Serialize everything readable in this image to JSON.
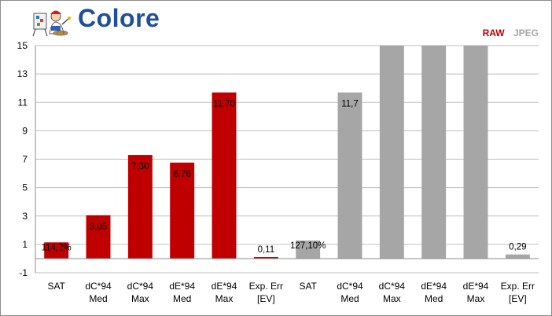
{
  "header": {
    "title": "Colore",
    "logo_icon": "painter-mascot-icon"
  },
  "legend": {
    "raw_label": "RAW",
    "jpeg_label": "JPEG"
  },
  "colors": {
    "raw": "#c00000",
    "jpeg": "#a6a6a6",
    "title": "#1f4e9b"
  },
  "chart_data": {
    "type": "bar",
    "title": "Colore",
    "xlabel": "",
    "ylabel": "",
    "ylim": [
      -1,
      15
    ],
    "yticks": [
      "-1",
      "1",
      "3",
      "5",
      "7",
      "9",
      "11",
      "13",
      "15"
    ],
    "grid": true,
    "legend_position": "top-right",
    "categories": [
      [
        "SAT"
      ],
      [
        "dC*94",
        "Med"
      ],
      [
        "dC*94",
        "Max"
      ],
      [
        "dE*94",
        "Med"
      ],
      [
        "dE*94",
        "Max"
      ],
      [
        "Exp. Err",
        "[EV]"
      ],
      [
        "SAT"
      ],
      [
        "dC*94",
        "Med"
      ],
      [
        "dC*94",
        "Max"
      ],
      [
        "dE*94",
        "Med"
      ],
      [
        "dE*94",
        "Max"
      ],
      [
        "Exp. Err",
        "[EV]"
      ]
    ],
    "series": [
      {
        "name": "RAW",
        "color": "#c00000",
        "indices": [
          0,
          1,
          2,
          3,
          4,
          5
        ]
      },
      {
        "name": "JPEG",
        "color": "#a6a6a6",
        "indices": [
          6,
          7,
          8,
          9,
          10,
          11
        ]
      }
    ],
    "values": [
      1.142,
      3.05,
      7.3,
      6.76,
      11.7,
      0.11,
      1.271,
      11.7,
      15,
      15,
      15,
      0.29
    ],
    "labels": [
      "114,2%",
      "3,05",
      "7,30",
      "6,76",
      "11,70",
      "0,11",
      "127,10%",
      "11,7",
      "",
      "",
      "",
      "0,29"
    ]
  }
}
